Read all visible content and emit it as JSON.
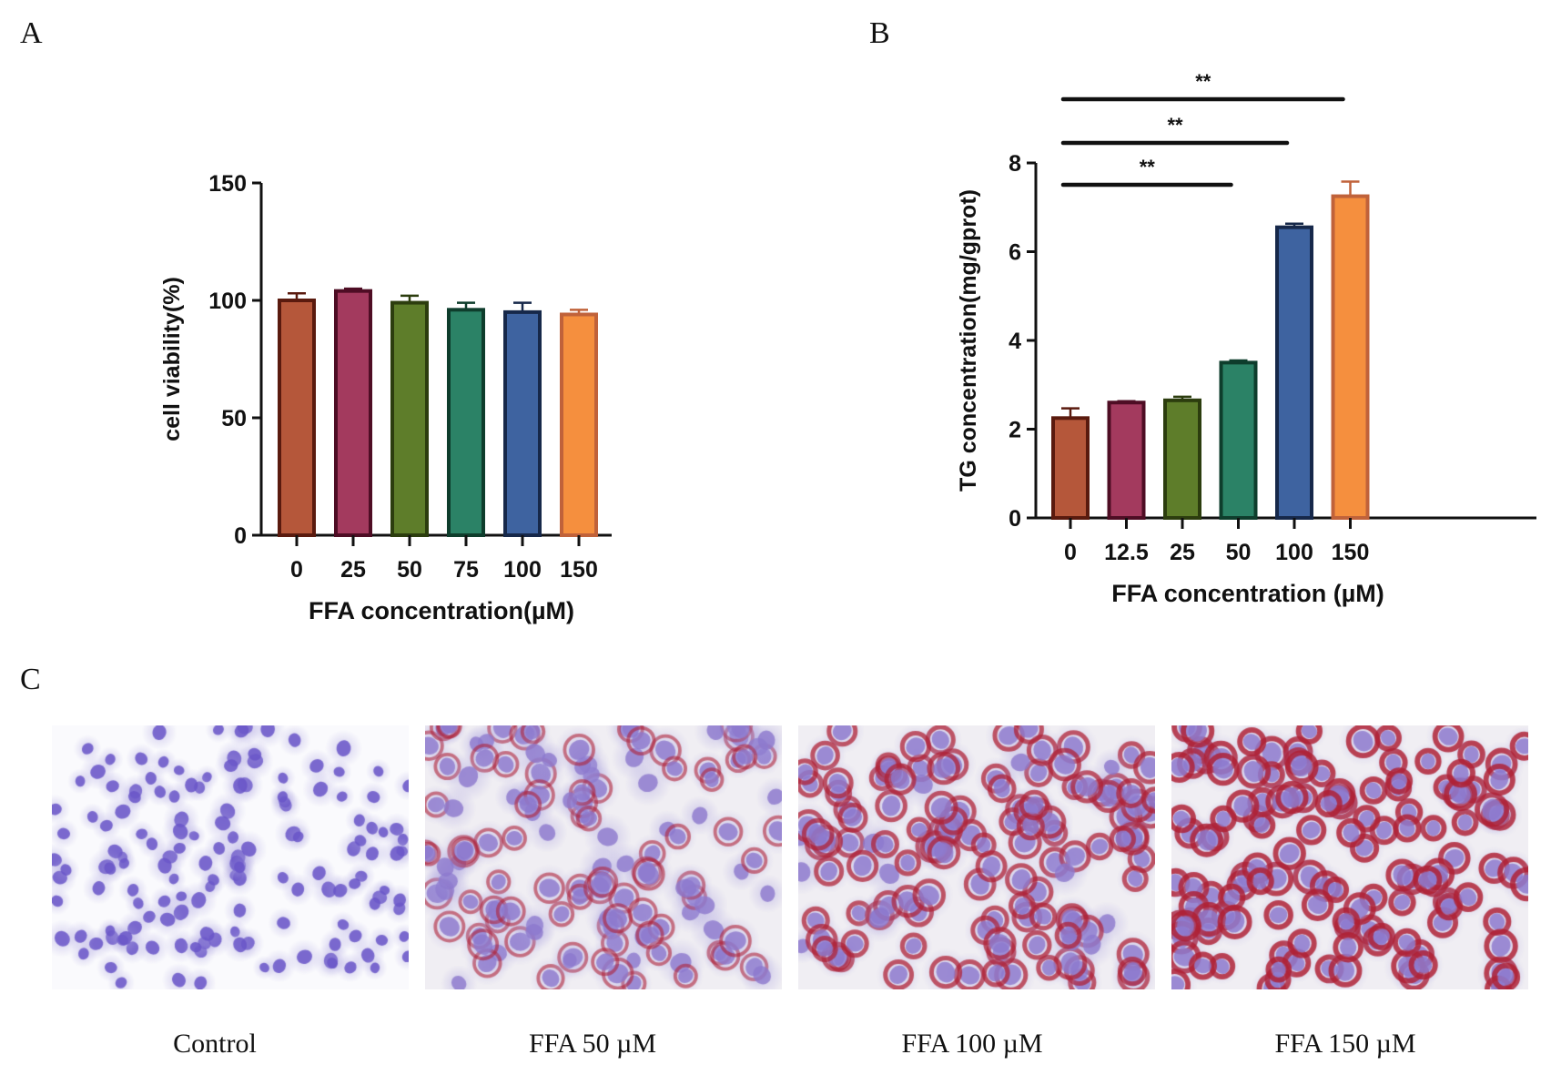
{
  "panels": {
    "a": "A",
    "b": "B",
    "c": "C"
  },
  "chart_data": [
    {
      "id": "A",
      "type": "bar",
      "title": "",
      "xlabel": "FFA concentration(µM)",
      "ylabel": "cell viability(%)",
      "categories": [
        "0",
        "25",
        "50",
        "75",
        "100",
        "150"
      ],
      "values": [
        100,
        104,
        99,
        96,
        95,
        94
      ],
      "errors": [
        3,
        1,
        3,
        3,
        4,
        2
      ],
      "colors": [
        "#b5573a",
        "#a33a5e",
        "#5e7d2a",
        "#2b8266",
        "#3e63a0",
        "#f58f3e"
      ],
      "edge_colors": [
        "#5a1a0e",
        "#4e0d24",
        "#2c3d0e",
        "#0e3d2c",
        "#16284a",
        "#c0623a"
      ],
      "ylim": [
        0,
        150
      ],
      "yticks": [
        0,
        50,
        100,
        150
      ],
      "grid": false
    },
    {
      "id": "B",
      "type": "bar",
      "title": "",
      "xlabel": "FFA concentration (µM)",
      "ylabel": "TG concentration(mg/gprot)",
      "categories": [
        "0",
        "12.5",
        "25",
        "50",
        "100",
        "150"
      ],
      "values": [
        2.25,
        2.6,
        2.65,
        3.5,
        6.55,
        7.25
      ],
      "errors": [
        0.22,
        0.03,
        0.08,
        0.05,
        0.08,
        0.33
      ],
      "colors": [
        "#b5573a",
        "#a33a5e",
        "#5e7d2a",
        "#2b8266",
        "#3e63a0",
        "#f58f3e"
      ],
      "edge_colors": [
        "#5a1a0e",
        "#4e0d24",
        "#2c3d0e",
        "#0e3d2c",
        "#16284a",
        "#c0623a"
      ],
      "ylim": [
        0,
        8
      ],
      "yticks": [
        0,
        2,
        4,
        6,
        8
      ],
      "grid": false,
      "significance": [
        {
          "from": 0,
          "to": 3,
          "label": "**"
        },
        {
          "from": 0,
          "to": 4,
          "label": "**"
        },
        {
          "from": 0,
          "to": 5,
          "label": "**"
        }
      ]
    }
  ],
  "micrographs": [
    {
      "caption": "Control",
      "stain_level": 0.0
    },
    {
      "caption": "FFA 50 µM",
      "stain_level": 0.45
    },
    {
      "caption": "FFA 100 µM",
      "stain_level": 0.75
    },
    {
      "caption": "FFA 150 µM",
      "stain_level": 0.95
    }
  ]
}
